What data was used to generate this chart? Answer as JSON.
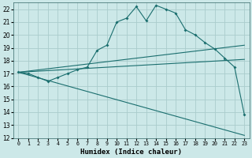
{
  "xlabel": "Humidex (Indice chaleur)",
  "bg_color": "#cce8e8",
  "grid_color": "#aacccc",
  "line_color": "#1a6e6e",
  "xlim": [
    -0.5,
    23.5
  ],
  "ylim": [
    12,
    22.5
  ],
  "xticks": [
    0,
    1,
    2,
    3,
    4,
    5,
    6,
    7,
    8,
    9,
    10,
    11,
    12,
    13,
    14,
    15,
    16,
    17,
    18,
    19,
    20,
    21,
    22,
    23
  ],
  "yticks": [
    12,
    13,
    14,
    15,
    16,
    17,
    18,
    19,
    20,
    21,
    22
  ],
  "line1_x": [
    0,
    1,
    2,
    3,
    4,
    5,
    6,
    7,
    8,
    9,
    10,
    11,
    12,
    13,
    14,
    15,
    16,
    17,
    18,
    19,
    20,
    21,
    22,
    23
  ],
  "line1_y": [
    17.1,
    17.0,
    16.7,
    16.4,
    16.7,
    17.0,
    17.3,
    17.5,
    18.8,
    19.2,
    21.0,
    21.3,
    22.2,
    21.1,
    22.3,
    22.0,
    21.7,
    20.4,
    20.0,
    19.4,
    18.9,
    18.2,
    17.5,
    13.8
  ],
  "line2_x": [
    0,
    23
  ],
  "line2_y": [
    17.1,
    19.2
  ],
  "line3_x": [
    0,
    23
  ],
  "line3_y": [
    17.1,
    18.1
  ],
  "line4_x": [
    0,
    23
  ],
  "line4_y": [
    17.1,
    12.2
  ]
}
